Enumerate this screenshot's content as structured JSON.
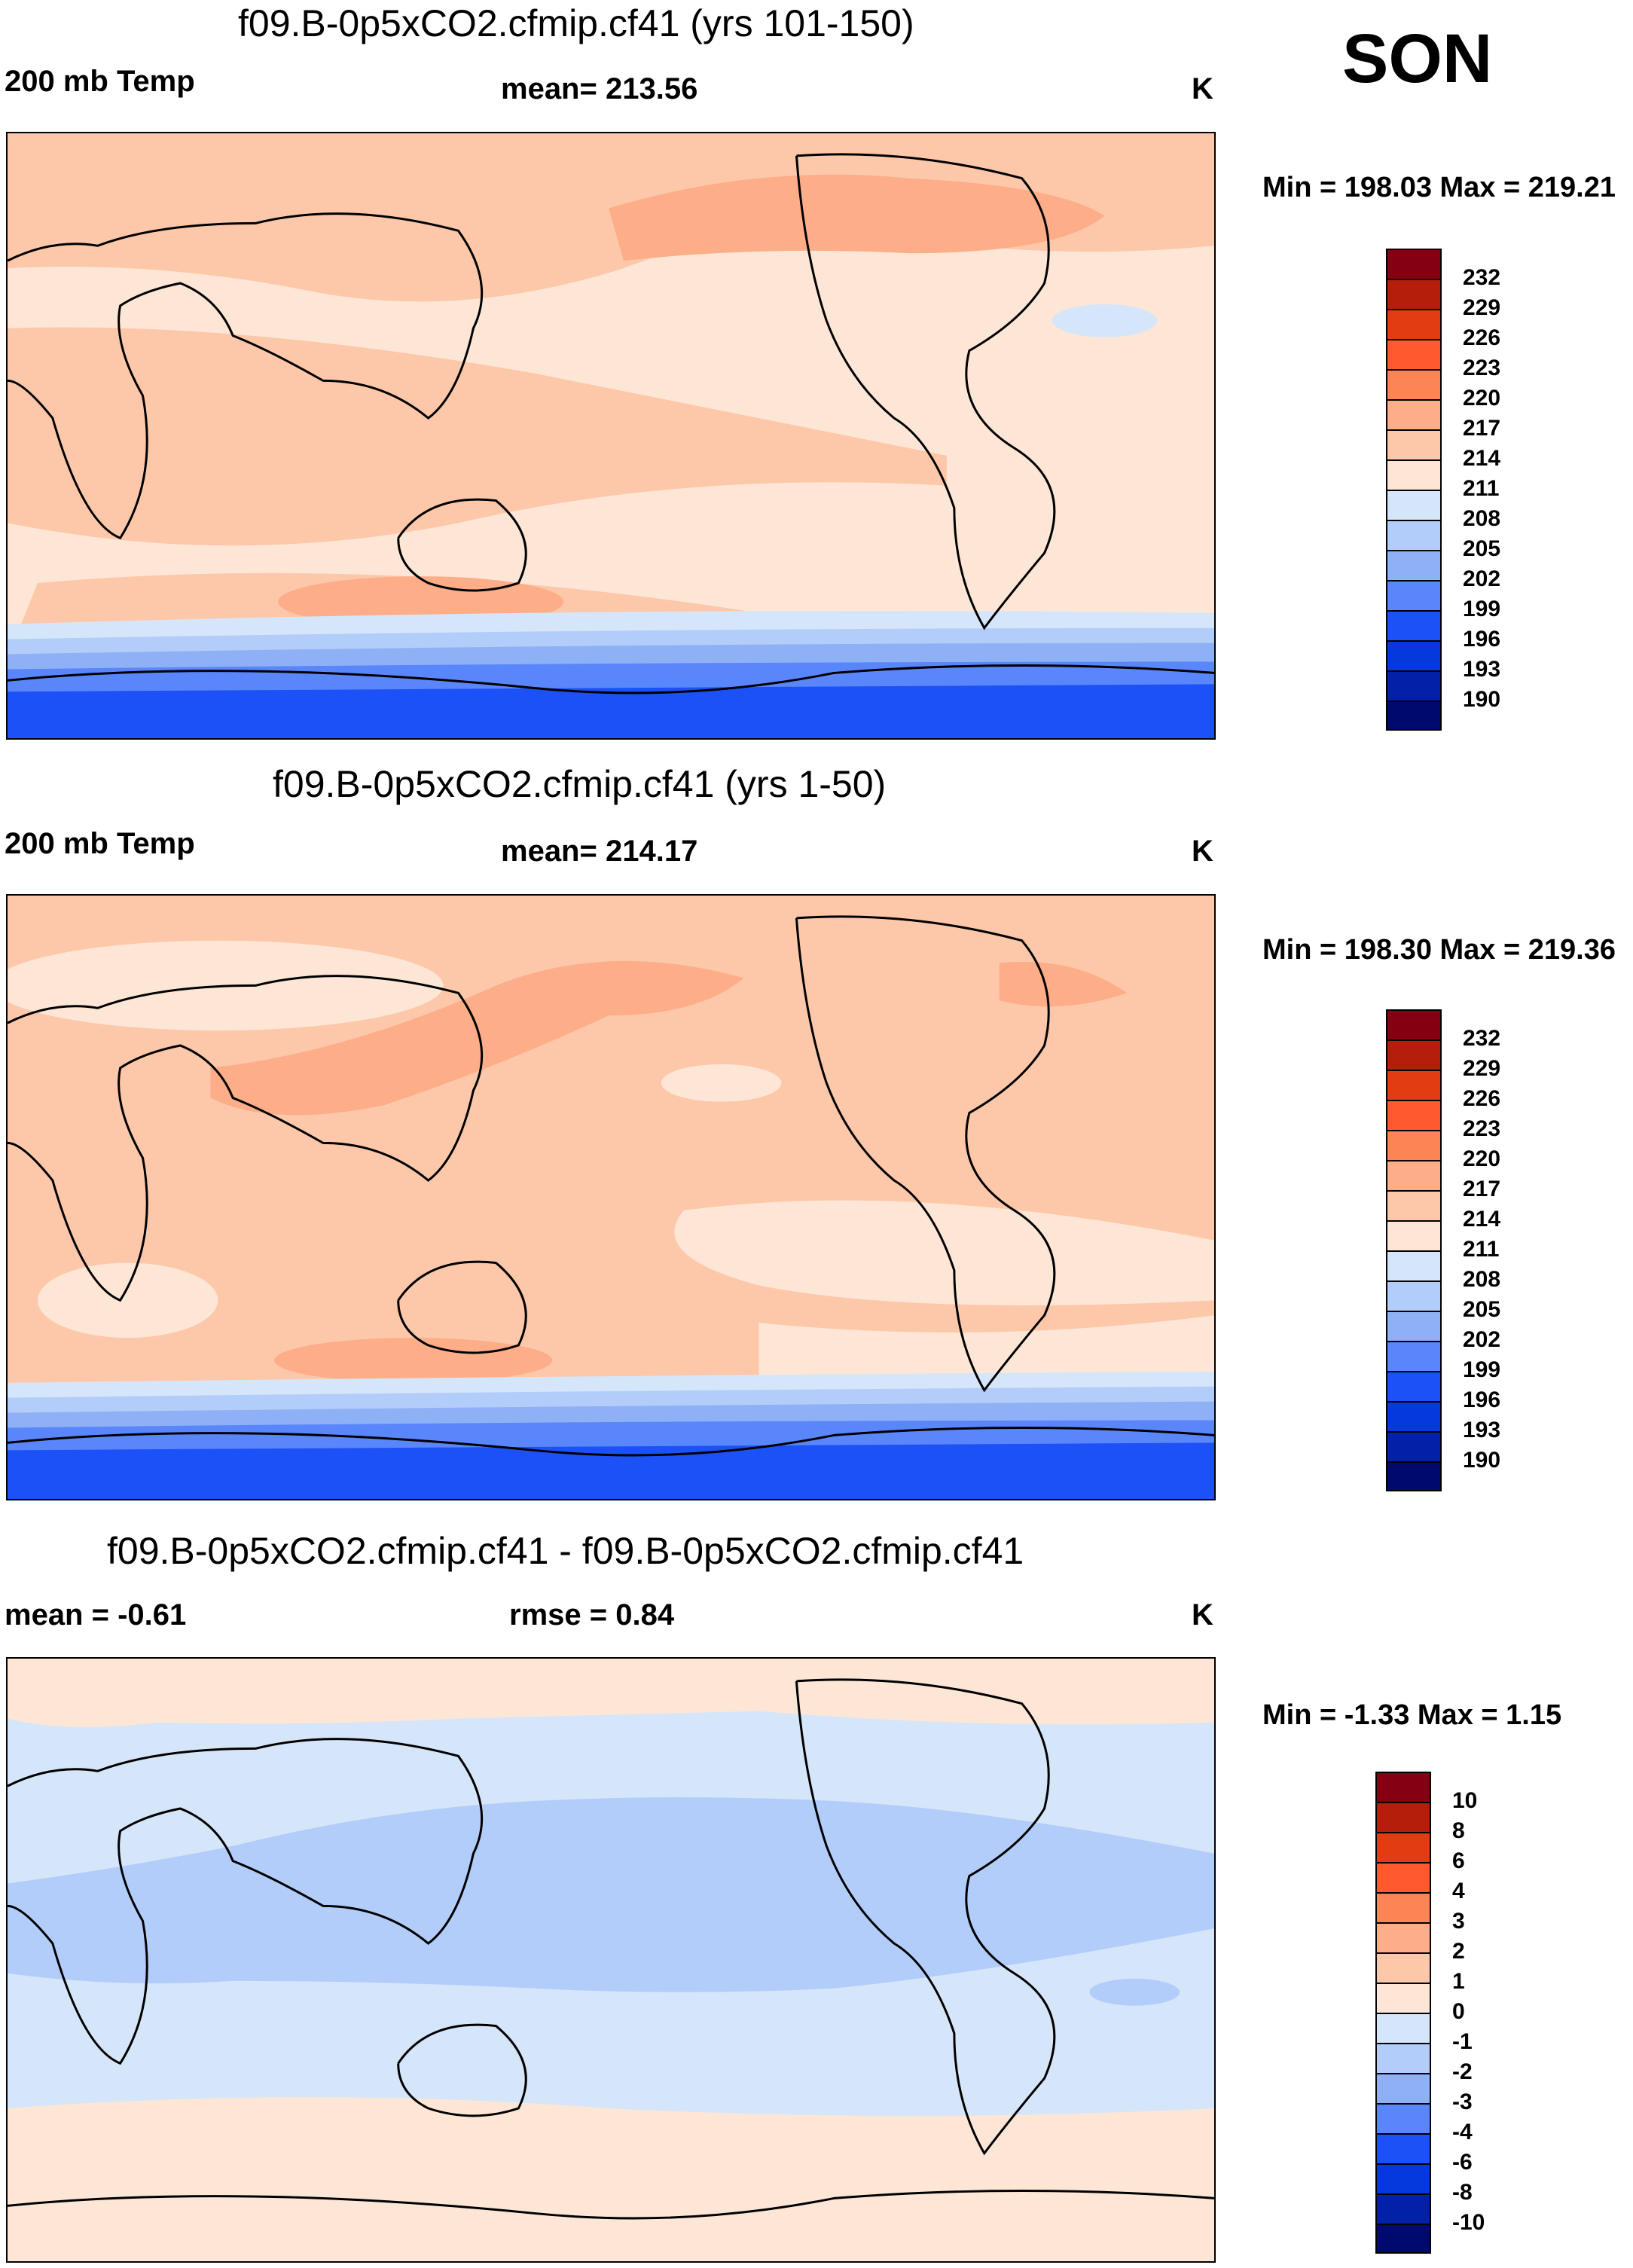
{
  "season": "SON",
  "panels": [
    {
      "title": "f09.B-0p5xCO2.cfmip.cf41 (yrs 101-150)",
      "left_label": "200 mb Temp",
      "center_label": "mean= 213.56",
      "units": "K",
      "minmax": "Min = 198.03 Max = 219.21",
      "colorbar_labels": [
        "232",
        "229",
        "226",
        "223",
        "220",
        "217",
        "214",
        "211",
        "208",
        "205",
        "202",
        "199",
        "196",
        "193",
        "190"
      ]
    },
    {
      "title": "f09.B-0p5xCO2.cfmip.cf41 (yrs 1-50)",
      "left_label": "200 mb Temp",
      "center_label": "mean= 214.17",
      "units": "K",
      "minmax": "Min = 198.30 Max = 219.36",
      "colorbar_labels": [
        "232",
        "229",
        "226",
        "223",
        "220",
        "217",
        "214",
        "211",
        "208",
        "205",
        "202",
        "199",
        "196",
        "193",
        "190"
      ]
    },
    {
      "title": "f09.B-0p5xCO2.cfmip.cf41 - f09.B-0p5xCO2.cfmip.cf41",
      "left_label": "mean =  -0.61",
      "center_label": "rmse =   0.84",
      "units": "K",
      "minmax": "Min =  -1.33 Max =   1.15",
      "colorbar_labels": [
        "10",
        "8",
        "6",
        "4",
        "3",
        "2",
        "1",
        "0",
        "-1",
        "-2",
        "-3",
        "-4",
        "-6",
        "-8",
        "-10"
      ]
    }
  ],
  "colors": {
    "palette": [
      "#850011",
      "#b61e0c",
      "#e13d13",
      "#fd5b2e",
      "#fd8455",
      "#fdad88",
      "#fdc8aa",
      "#fde6d6",
      "#d5e6fa",
      "#b3cdfa",
      "#8eb1f6",
      "#5a86fb",
      "#1b51f6",
      "#0539dd",
      "#0321a8",
      "#00096d"
    ]
  }
}
